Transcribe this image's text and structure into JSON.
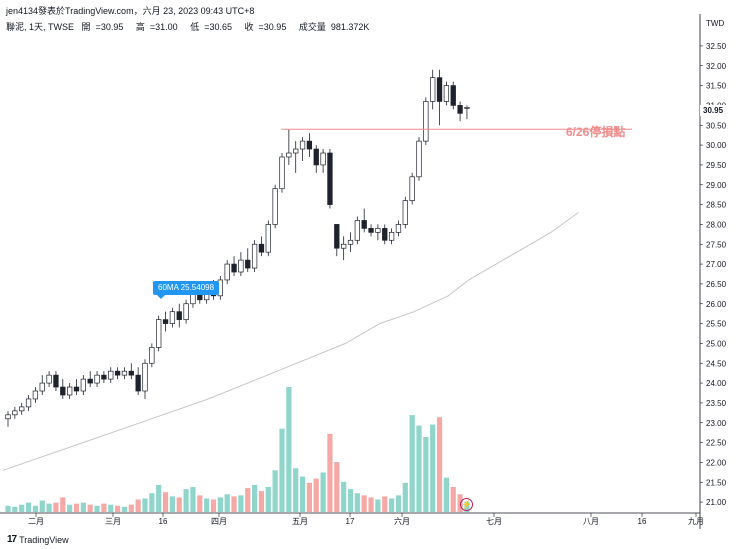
{
  "header": {
    "publisher_line": "jen4134發表於TradingView.com，六月 23, 2023 09:43 UTC+8",
    "symbol": "聯泥, 1天, TWSE",
    "open_label": "開",
    "open": "30.95",
    "high_label": "高",
    "high": "31.00",
    "low_label": "低",
    "low": "30.65",
    "close_label": "收",
    "close": "30.95",
    "volume_label": "成交量",
    "volume": "981.372K"
  },
  "price_axis": {
    "currency": "TWD",
    "last_price": "30.95",
    "ticks": [
      "32.50",
      "32.00",
      "31.50",
      "31.00",
      "30.50",
      "30.00",
      "29.50",
      "29.00",
      "28.50",
      "28.00",
      "27.50",
      "27.00",
      "26.50",
      "26.00",
      "25.50",
      "25.00",
      "24.50",
      "24.00",
      "23.50",
      "23.00",
      "22.50",
      "22.00",
      "21.50",
      "21.00"
    ]
  },
  "time_axis": {
    "ticks": [
      "二月",
      "三月",
      "16",
      "四月",
      "五月",
      "17",
      "六月",
      "七月",
      "八月",
      "16",
      "九月"
    ]
  },
  "annotations": {
    "ma_tag": "60MA 25.54098",
    "stop_loss_label": "6/26停損點",
    "stop_loss_price": 30.4
  },
  "footer": {
    "brand": "TradingView",
    "logo_text": "17",
    "bolt_icon": "⚡"
  },
  "colors": {
    "up_candle": "#ffffff",
    "down_candle": "#1e222d",
    "candle_outline": "#1e222d",
    "volume_up": "#8fd5cc",
    "volume_down": "#f5a9a6",
    "ma_line": "#c7c7c7",
    "stop_line": "#f08c8c",
    "ma_tag_bg": "#2196f3"
  },
  "chart_data": {
    "type": "candlestick",
    "interval": "1 day",
    "ylim": [
      20.8,
      32.8
    ],
    "x_range_days": [
      0,
      180
    ],
    "note_x": "x is trading-day index starting at first visible bar",
    "candles": [
      {
        "o": 23.1,
        "h": 23.3,
        "l": 22.9,
        "c": 23.2,
        "v": 0.6
      },
      {
        "o": 23.2,
        "h": 23.4,
        "l": 23.1,
        "c": 23.3,
        "v": 0.5
      },
      {
        "o": 23.3,
        "h": 23.5,
        "l": 23.2,
        "c": 23.4,
        "v": 0.7
      },
      {
        "o": 23.4,
        "h": 23.7,
        "l": 23.3,
        "c": 23.6,
        "v": 0.9
      },
      {
        "o": 23.6,
        "h": 23.9,
        "l": 23.5,
        "c": 23.8,
        "v": 0.6
      },
      {
        "o": 23.8,
        "h": 24.2,
        "l": 23.7,
        "c": 24.0,
        "v": 1.1
      },
      {
        "o": 24.0,
        "h": 24.3,
        "l": 23.9,
        "c": 24.2,
        "v": 0.8
      },
      {
        "o": 24.2,
        "h": 24.3,
        "l": 23.8,
        "c": 23.9,
        "v": 0.9
      },
      {
        "o": 23.9,
        "h": 24.1,
        "l": 23.6,
        "c": 23.7,
        "v": 1.4
      },
      {
        "o": 23.7,
        "h": 24.0,
        "l": 23.6,
        "c": 23.9,
        "v": 0.7
      },
      {
        "o": 23.9,
        "h": 24.1,
        "l": 23.7,
        "c": 23.8,
        "v": 0.8
      },
      {
        "o": 23.8,
        "h": 24.2,
        "l": 23.7,
        "c": 24.1,
        "v": 0.9
      },
      {
        "o": 24.1,
        "h": 24.3,
        "l": 23.9,
        "c": 24.0,
        "v": 0.7
      },
      {
        "o": 24.0,
        "h": 24.3,
        "l": 23.9,
        "c": 24.2,
        "v": 0.6
      },
      {
        "o": 24.2,
        "h": 24.3,
        "l": 24.0,
        "c": 24.1,
        "v": 0.8
      },
      {
        "o": 24.1,
        "h": 24.4,
        "l": 24.0,
        "c": 24.3,
        "v": 0.7
      },
      {
        "o": 24.3,
        "h": 24.4,
        "l": 24.1,
        "c": 24.2,
        "v": 0.6
      },
      {
        "o": 24.2,
        "h": 24.4,
        "l": 24.1,
        "c": 24.3,
        "v": 0.5
      },
      {
        "o": 24.3,
        "h": 24.5,
        "l": 24.1,
        "c": 24.2,
        "v": 0.7
      },
      {
        "o": 24.2,
        "h": 24.4,
        "l": 23.7,
        "c": 23.8,
        "v": 1.2
      },
      {
        "o": 23.8,
        "h": 24.6,
        "l": 23.6,
        "c": 24.5,
        "v": 1.3
      },
      {
        "o": 24.5,
        "h": 25.0,
        "l": 24.4,
        "c": 24.9,
        "v": 1.8
      },
      {
        "o": 24.9,
        "h": 25.7,
        "l": 24.8,
        "c": 25.6,
        "v": 2.6
      },
      {
        "o": 25.6,
        "h": 25.8,
        "l": 25.3,
        "c": 25.5,
        "v": 1.9
      },
      {
        "o": 25.5,
        "h": 25.9,
        "l": 25.4,
        "c": 25.8,
        "v": 1.5
      },
      {
        "o": 25.8,
        "h": 26.0,
        "l": 25.4,
        "c": 25.6,
        "v": 1.4
      },
      {
        "o": 25.6,
        "h": 26.1,
        "l": 25.5,
        "c": 26.0,
        "v": 2.2
      },
      {
        "o": 26.0,
        "h": 26.4,
        "l": 25.9,
        "c": 26.3,
        "v": 2.4
      },
      {
        "o": 26.3,
        "h": 26.4,
        "l": 26.0,
        "c": 26.1,
        "v": 1.6
      },
      {
        "o": 26.1,
        "h": 26.5,
        "l": 26.0,
        "c": 26.4,
        "v": 1.3
      },
      {
        "o": 26.4,
        "h": 26.6,
        "l": 26.1,
        "c": 26.2,
        "v": 1.2
      },
      {
        "o": 26.2,
        "h": 26.7,
        "l": 26.1,
        "c": 26.6,
        "v": 1.4
      },
      {
        "o": 26.6,
        "h": 27.1,
        "l": 26.5,
        "c": 27.0,
        "v": 1.7
      },
      {
        "o": 27.0,
        "h": 27.2,
        "l": 26.7,
        "c": 26.8,
        "v": 1.5
      },
      {
        "o": 26.8,
        "h": 27.3,
        "l": 26.7,
        "c": 27.1,
        "v": 1.6
      },
      {
        "o": 27.1,
        "h": 27.4,
        "l": 26.8,
        "c": 26.9,
        "v": 2.3
      },
      {
        "o": 26.9,
        "h": 27.6,
        "l": 26.8,
        "c": 27.5,
        "v": 2.6
      },
      {
        "o": 27.5,
        "h": 27.7,
        "l": 27.2,
        "c": 27.3,
        "v": 2.0
      },
      {
        "o": 27.3,
        "h": 28.1,
        "l": 27.2,
        "c": 28.0,
        "v": 2.4
      },
      {
        "o": 28.0,
        "h": 29.0,
        "l": 27.9,
        "c": 28.9,
        "v": 4.0
      },
      {
        "o": 28.9,
        "h": 29.8,
        "l": 28.8,
        "c": 29.7,
        "v": 8.0
      },
      {
        "o": 29.7,
        "h": 30.4,
        "l": 29.5,
        "c": 29.8,
        "v": 12.0
      },
      {
        "o": 29.8,
        "h": 30.1,
        "l": 29.3,
        "c": 29.9,
        "v": 4.2
      },
      {
        "o": 29.9,
        "h": 30.2,
        "l": 29.6,
        "c": 30.1,
        "v": 3.4
      },
      {
        "o": 30.1,
        "h": 30.3,
        "l": 29.7,
        "c": 29.9,
        "v": 2.8
      },
      {
        "o": 29.9,
        "h": 30.0,
        "l": 29.3,
        "c": 29.5,
        "v": 3.2
      },
      {
        "o": 29.5,
        "h": 29.9,
        "l": 29.3,
        "c": 29.8,
        "v": 3.8
      },
      {
        "o": 29.8,
        "h": 29.9,
        "l": 28.4,
        "c": 28.5,
        "v": 7.5
      },
      {
        "o": 28.0,
        "h": 28.0,
        "l": 27.2,
        "c": 27.4,
        "v": 4.8
      },
      {
        "o": 27.4,
        "h": 27.7,
        "l": 27.1,
        "c": 27.5,
        "v": 2.9
      },
      {
        "o": 27.5,
        "h": 27.8,
        "l": 27.3,
        "c": 27.6,
        "v": 2.2
      },
      {
        "o": 27.6,
        "h": 28.2,
        "l": 27.5,
        "c": 28.1,
        "v": 1.8
      },
      {
        "o": 28.1,
        "h": 28.4,
        "l": 27.8,
        "c": 27.9,
        "v": 1.6
      },
      {
        "o": 27.9,
        "h": 28.0,
        "l": 27.7,
        "c": 27.8,
        "v": 1.4
      },
      {
        "o": 27.8,
        "h": 28.0,
        "l": 27.6,
        "c": 27.9,
        "v": 1.2
      },
      {
        "o": 27.9,
        "h": 28.0,
        "l": 27.5,
        "c": 27.6,
        "v": 1.5
      },
      {
        "o": 27.6,
        "h": 27.9,
        "l": 27.5,
        "c": 27.8,
        "v": 1.3
      },
      {
        "o": 27.8,
        "h": 28.1,
        "l": 27.7,
        "c": 28.0,
        "v": 1.6
      },
      {
        "o": 28.0,
        "h": 28.7,
        "l": 27.9,
        "c": 28.6,
        "v": 2.8
      },
      {
        "o": 28.6,
        "h": 29.3,
        "l": 28.5,
        "c": 29.2,
        "v": 9.3
      },
      {
        "o": 29.2,
        "h": 30.2,
        "l": 29.1,
        "c": 30.1,
        "v": 8.3
      },
      {
        "o": 30.1,
        "h": 31.2,
        "l": 30.0,
        "c": 31.1,
        "v": 7.2
      },
      {
        "o": 31.1,
        "h": 31.9,
        "l": 30.9,
        "c": 31.7,
        "v": 8.4
      },
      {
        "o": 31.7,
        "h": 31.9,
        "l": 30.5,
        "c": 31.1,
        "v": 9.1
      },
      {
        "o": 31.1,
        "h": 31.6,
        "l": 31.0,
        "c": 31.5,
        "v": 3.3
      },
      {
        "o": 31.5,
        "h": 31.6,
        "l": 30.9,
        "c": 31.0,
        "v": 2.4
      },
      {
        "o": 31.0,
        "h": 31.1,
        "l": 30.6,
        "c": 30.8,
        "v": 1.7
      },
      {
        "o": 30.95,
        "h": 31.0,
        "l": 30.65,
        "c": 30.95,
        "v": 0.98
      }
    ],
    "ma60": [
      [
        0,
        21.8
      ],
      [
        10,
        22.4
      ],
      [
        20,
        23.0
      ],
      [
        30,
        23.6
      ],
      [
        40,
        24.3
      ],
      [
        50,
        25.0
      ],
      [
        55,
        25.5
      ],
      [
        60,
        25.8
      ],
      [
        65,
        26.2
      ],
      [
        68,
        26.6
      ],
      [
        73,
        27.1
      ],
      [
        78,
        27.6
      ],
      [
        80,
        27.8
      ],
      [
        84,
        28.3
      ]
    ]
  }
}
